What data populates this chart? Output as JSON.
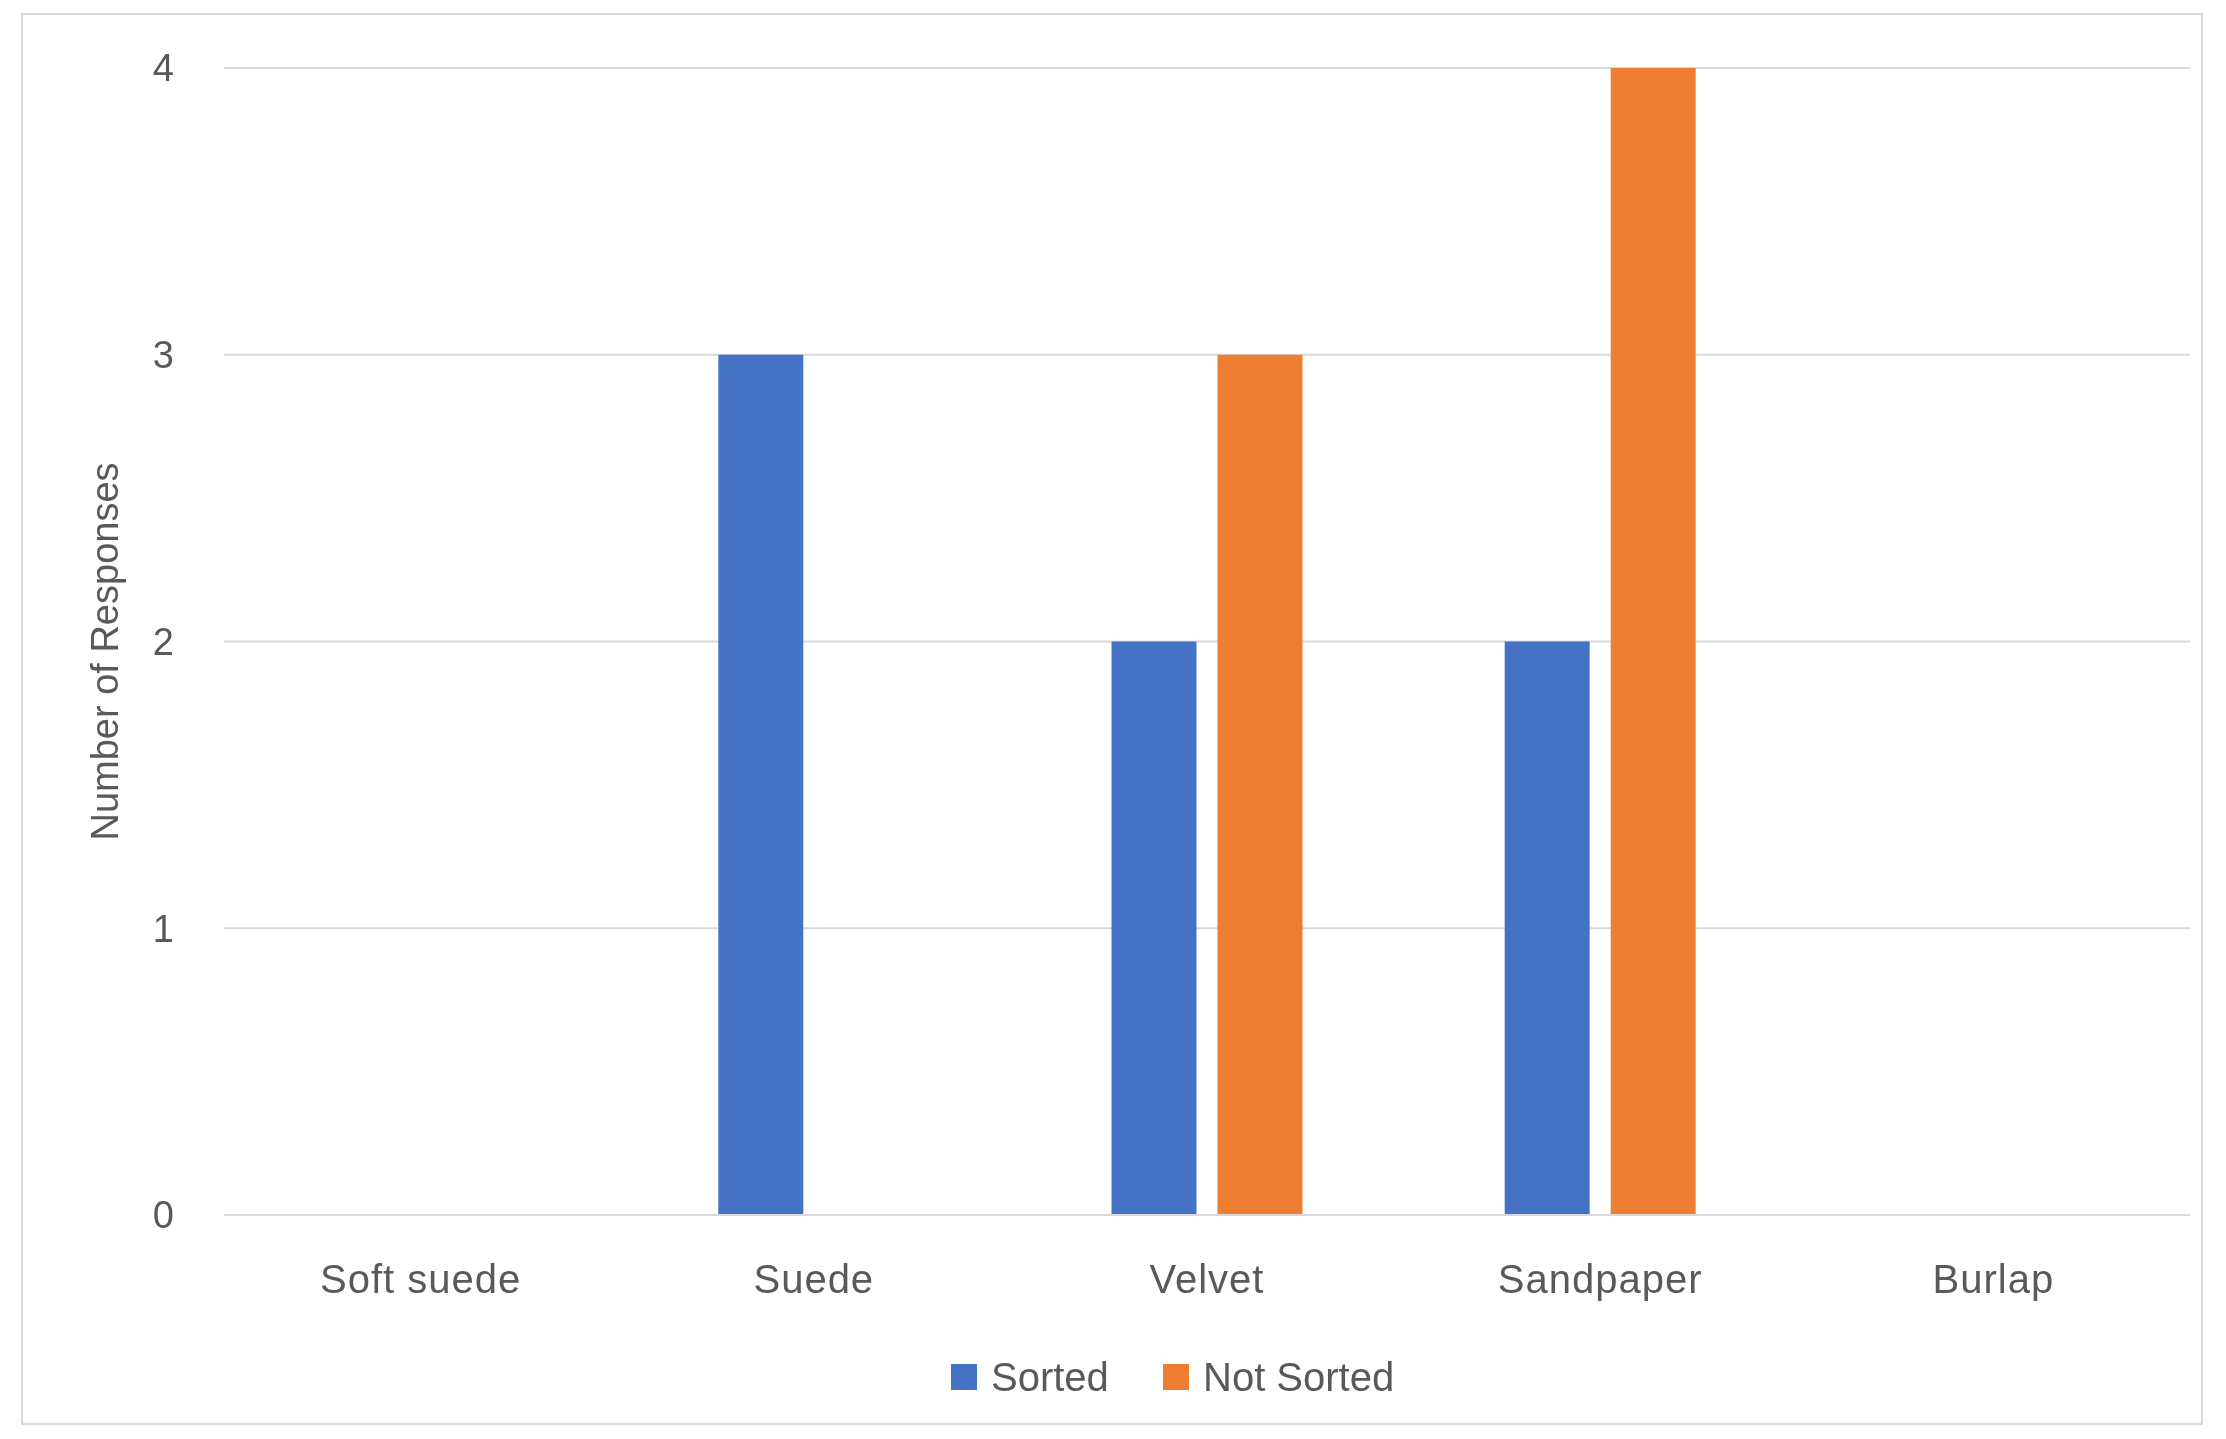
{
  "chart_data": {
    "type": "bar",
    "ylabel": "Number of Responses",
    "categories": [
      "Soft suede",
      "Suede",
      "Velvet",
      "Sandpaper",
      "Burlap"
    ],
    "series": [
      {
        "name": "Sorted",
        "color": "#4472c4",
        "values": [
          0,
          3,
          2,
          2,
          0
        ]
      },
      {
        "name": "Not Sorted",
        "color": "#ed7d31",
        "values": [
          0,
          0,
          3,
          4,
          0
        ]
      }
    ],
    "ylim": [
      0,
      4
    ],
    "yticks": [
      0,
      1,
      2,
      3,
      4
    ],
    "grid": "y",
    "legend": "bottom"
  }
}
